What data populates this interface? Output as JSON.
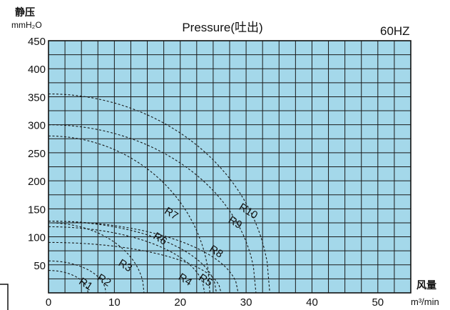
{
  "chart_data": {
    "type": "line",
    "title": "Pressure(吐出)",
    "frequency_label": "60HZ",
    "ylabel": "静压",
    "yunit": "mmH₂O",
    "xlabel": "风量",
    "xunit": "m³/min",
    "xlim": [
      0,
      55
    ],
    "ylim": [
      0,
      450
    ],
    "x_ticks": [
      0,
      10,
      20,
      30,
      40,
      50
    ],
    "y_ticks": [
      50,
      100,
      150,
      200,
      250,
      300,
      350,
      400,
      450
    ],
    "grid": true,
    "grid_step_x": 2.5,
    "grid_step_y": 25,
    "colors": {
      "plot_bg": "#a4d8ea",
      "grid": "#1a1a1a",
      "curve": "#1a1a1a"
    },
    "series": [
      {
        "name": "R1",
        "x0": 6.0,
        "y0": 40,
        "label_x": 4.5,
        "label_y": 17
      },
      {
        "name": "R2",
        "x0": 8.7,
        "y0": 57,
        "label_x": 7.3,
        "label_y": 24
      },
      {
        "name": "R3",
        "x0": 14.5,
        "y0": 125,
        "label_x": 10.5,
        "label_y": 50
      },
      {
        "name": "R4",
        "x0": 23.7,
        "y0": 118,
        "label_x": 19.6,
        "label_y": 25
      },
      {
        "name": "R5",
        "x0": 26.2,
        "y0": 90,
        "label_x": 22.7,
        "label_y": 24
      },
      {
        "name": "R6",
        "x0": 25.5,
        "y0": 128,
        "label_x": 15.8,
        "label_y": 98
      },
      {
        "name": "R7",
        "x0": 24.5,
        "y0": 280,
        "label_x": 17.5,
        "label_y": 143
      },
      {
        "name": "R8",
        "x0": 28.8,
        "y0": 128,
        "label_x": 24.3,
        "label_y": 75
      },
      {
        "name": "R9",
        "x0": 31.5,
        "y0": 300,
        "label_x": 27.2,
        "label_y": 127
      },
      {
        "name": "R10",
        "x0": 33.6,
        "y0": 355,
        "label_x": 28.8,
        "label_y": 150
      }
    ]
  }
}
